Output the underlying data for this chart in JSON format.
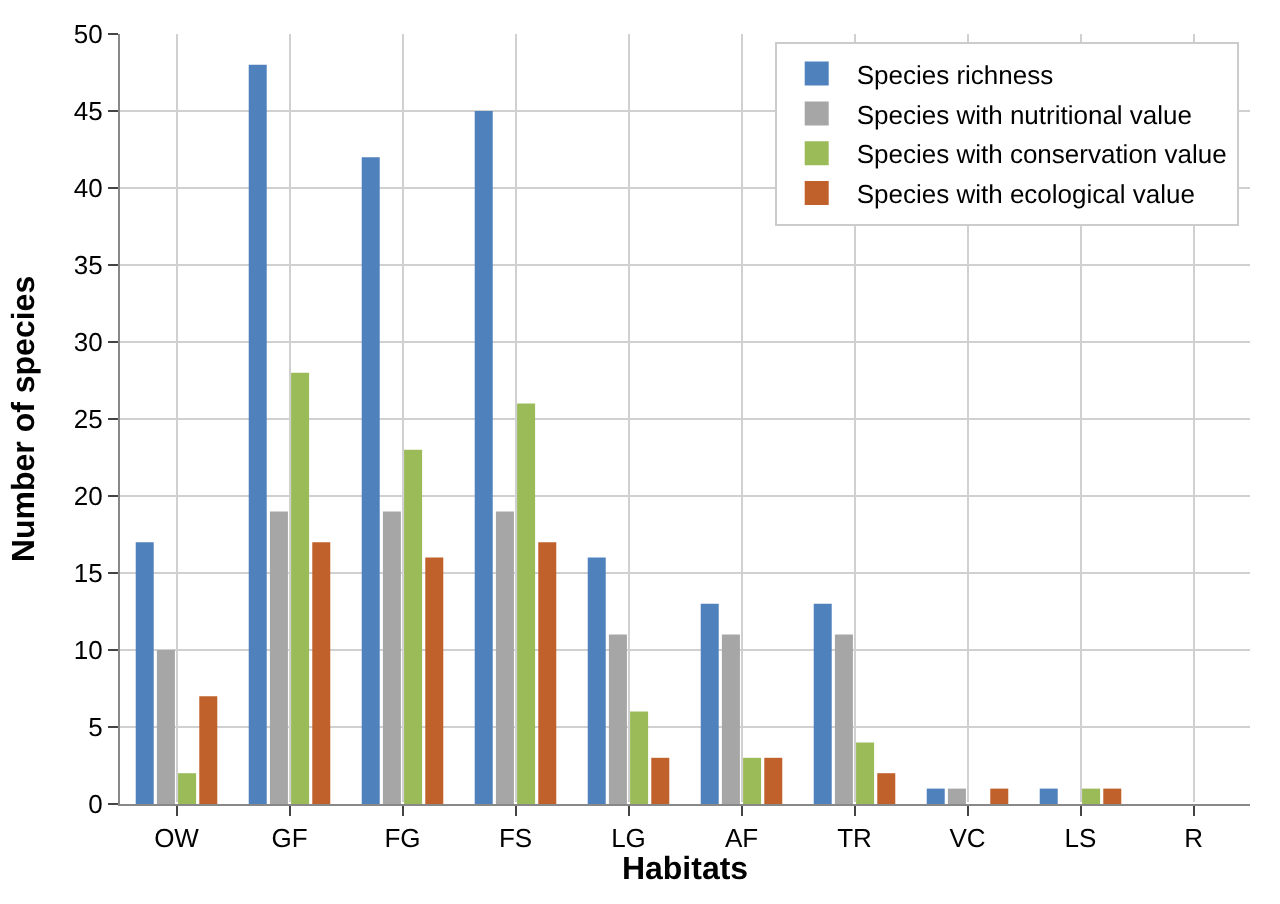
{
  "chart_data": {
    "type": "bar",
    "xlabel": "Habitats",
    "ylabel": "Number of species",
    "categories": [
      "OW",
      "GF",
      "FG",
      "FS",
      "LG",
      "AF",
      "TR",
      "VC",
      "LS",
      "R"
    ],
    "series": [
      {
        "name": "Species richness",
        "color": "#4f81bd",
        "values": [
          17,
          48,
          42,
          45,
          16,
          13,
          13,
          1,
          1,
          0
        ]
      },
      {
        "name": "Species with nutritional value",
        "color": "#a6a6a6",
        "values": [
          10,
          19,
          19,
          19,
          11,
          11,
          11,
          1,
          0,
          0
        ]
      },
      {
        "name": "Species with conservation value",
        "color": "#9bbb59",
        "values": [
          2,
          28,
          23,
          26,
          6,
          3,
          4,
          0,
          1,
          0
        ]
      },
      {
        "name": "Species with ecological value",
        "color": "#c0602a",
        "values": [
          7,
          17,
          16,
          17,
          3,
          3,
          2,
          1,
          1,
          0
        ]
      }
    ],
    "ylim": [
      0,
      50
    ],
    "yticks": [
      0,
      5,
      10,
      15,
      20,
      25,
      30,
      35,
      40,
      45,
      50
    ],
    "grid": true,
    "legend": "top right"
  }
}
